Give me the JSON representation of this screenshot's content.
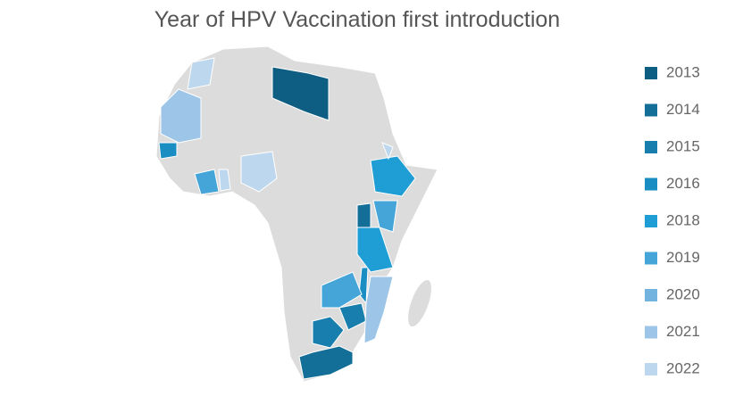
{
  "title": "Year of HPV Vaccination first introduction",
  "legend": [
    {
      "label": "2013",
      "color": "#0e5d82"
    },
    {
      "label": "2014",
      "color": "#136e98"
    },
    {
      "label": "2015",
      "color": "#187ead"
    },
    {
      "label": "2016",
      "color": "#1a8dc3"
    },
    {
      "label": "2018",
      "color": "#1f9dd5"
    },
    {
      "label": "2019",
      "color": "#45a5d9"
    },
    {
      "label": "2020",
      "color": "#72b3df"
    },
    {
      "label": "2021",
      "color": "#9dc5e7"
    },
    {
      "label": "2022",
      "color": "#bdd7ee"
    }
  ]
}
